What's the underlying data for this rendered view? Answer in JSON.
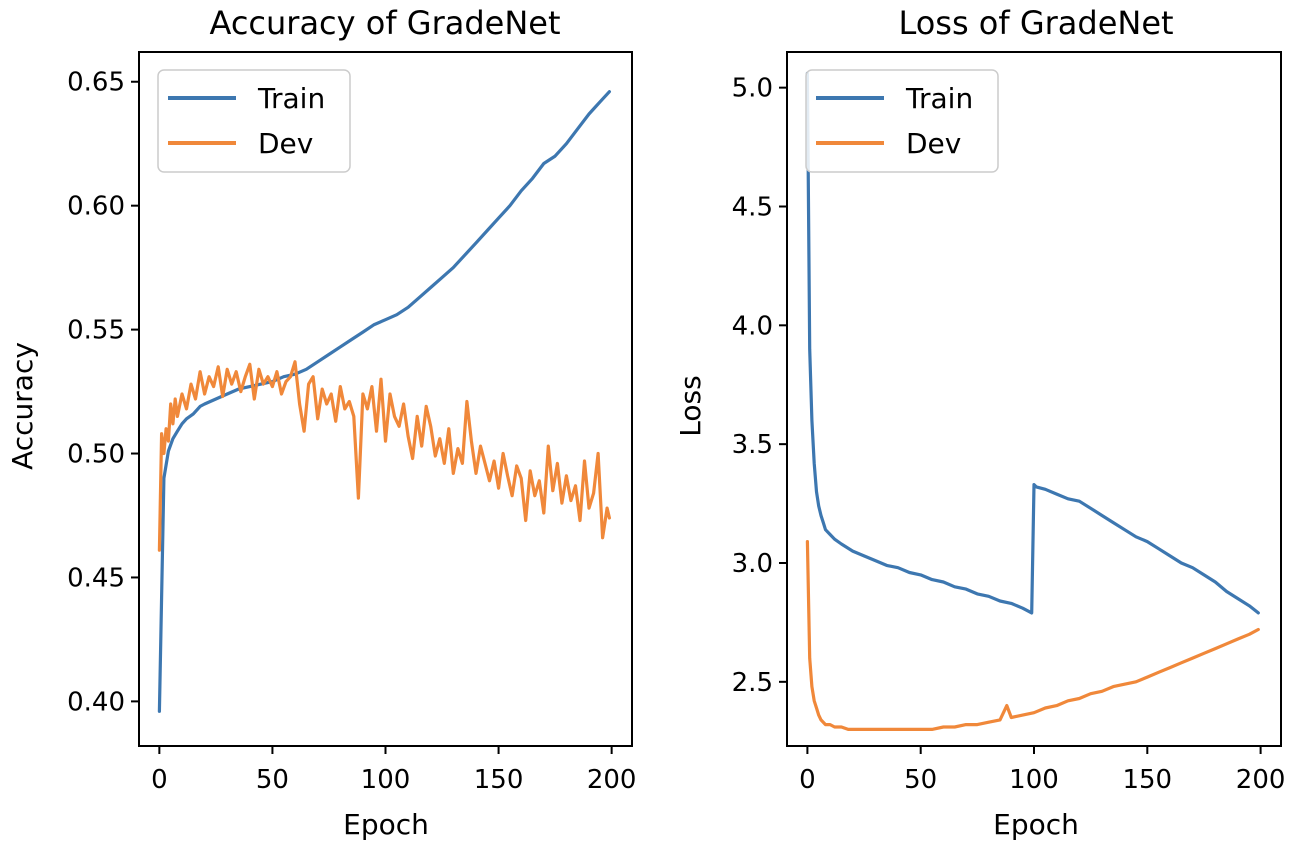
{
  "chart_data": [
    {
      "type": "line",
      "title": "Accuracy of GradeNet",
      "xlabel": "Epoch",
      "ylabel": "Accuracy",
      "xlim": [
        -9,
        209
      ],
      "ylim": [
        0.382,
        0.662
      ],
      "xticks": [
        0,
        50,
        100,
        150,
        200
      ],
      "yticks": [
        0.4,
        0.45,
        0.5,
        0.55,
        0.6,
        0.65
      ],
      "xtick_labels": [
        "0",
        "50",
        "100",
        "150",
        "200"
      ],
      "ytick_labels": [
        "0.40",
        "0.45",
        "0.50",
        "0.55",
        "0.60",
        "0.65"
      ],
      "legend_position": "upper-left",
      "grid": false,
      "series": [
        {
          "name": "Train",
          "color": "#3d77b0",
          "x": [
            0,
            2,
            4,
            6,
            8,
            10,
            12,
            15,
            18,
            20,
            25,
            30,
            35,
            40,
            45,
            50,
            55,
            60,
            65,
            70,
            75,
            80,
            85,
            90,
            95,
            100,
            105,
            110,
            115,
            120,
            125,
            130,
            135,
            140,
            145,
            150,
            155,
            160,
            165,
            170,
            175,
            180,
            185,
            190,
            193,
            195,
            197,
            199
          ],
          "y": [
            0.396,
            0.49,
            0.501,
            0.506,
            0.509,
            0.512,
            0.514,
            0.516,
            0.519,
            0.52,
            0.522,
            0.524,
            0.526,
            0.527,
            0.528,
            0.529,
            0.531,
            0.532,
            0.534,
            0.537,
            0.54,
            0.543,
            0.546,
            0.549,
            0.552,
            0.554,
            0.556,
            0.559,
            0.563,
            0.567,
            0.571,
            0.575,
            0.58,
            0.585,
            0.59,
            0.595,
            0.6,
            0.606,
            0.611,
            0.617,
            0.62,
            0.625,
            0.631,
            0.637,
            0.64,
            0.642,
            0.644,
            0.646
          ]
        },
        {
          "name": "Dev",
          "color": "#f0883a",
          "x": [
            0,
            1,
            2,
            3,
            4,
            5,
            6,
            7,
            8,
            10,
            12,
            14,
            16,
            18,
            20,
            22,
            24,
            26,
            28,
            30,
            32,
            34,
            36,
            38,
            40,
            42,
            44,
            46,
            48,
            50,
            52,
            54,
            56,
            58,
            60,
            62,
            64,
            66,
            68,
            70,
            72,
            74,
            76,
            78,
            80,
            82,
            84,
            86,
            88,
            90,
            92,
            94,
            96,
            98,
            100,
            102,
            104,
            106,
            108,
            110,
            112,
            114,
            116,
            118,
            120,
            122,
            124,
            126,
            128,
            130,
            132,
            134,
            136,
            138,
            140,
            142,
            144,
            146,
            148,
            150,
            152,
            154,
            156,
            158,
            160,
            162,
            164,
            166,
            168,
            170,
            172,
            174,
            176,
            178,
            180,
            182,
            184,
            186,
            188,
            190,
            192,
            194,
            196,
            198,
            199
          ],
          "y": [
            0.461,
            0.508,
            0.5,
            0.51,
            0.505,
            0.52,
            0.512,
            0.522,
            0.515,
            0.524,
            0.518,
            0.528,
            0.522,
            0.533,
            0.524,
            0.531,
            0.527,
            0.535,
            0.523,
            0.534,
            0.528,
            0.533,
            0.525,
            0.531,
            0.536,
            0.522,
            0.534,
            0.528,
            0.531,
            0.527,
            0.533,
            0.524,
            0.529,
            0.531,
            0.537,
            0.52,
            0.509,
            0.528,
            0.531,
            0.514,
            0.526,
            0.52,
            0.524,
            0.513,
            0.527,
            0.518,
            0.521,
            0.515,
            0.482,
            0.524,
            0.518,
            0.527,
            0.509,
            0.53,
            0.505,
            0.524,
            0.515,
            0.511,
            0.52,
            0.507,
            0.498,
            0.515,
            0.503,
            0.519,
            0.511,
            0.499,
            0.506,
            0.496,
            0.51,
            0.492,
            0.502,
            0.496,
            0.521,
            0.505,
            0.492,
            0.503,
            0.496,
            0.489,
            0.497,
            0.486,
            0.5,
            0.491,
            0.483,
            0.495,
            0.49,
            0.473,
            0.493,
            0.483,
            0.489,
            0.476,
            0.503,
            0.485,
            0.496,
            0.48,
            0.491,
            0.481,
            0.487,
            0.473,
            0.497,
            0.478,
            0.484,
            0.5,
            0.466,
            0.478,
            0.474
          ]
        }
      ]
    },
    {
      "type": "line",
      "title": "Loss of GradeNet",
      "xlabel": "Epoch",
      "ylabel": "Loss",
      "xlim": [
        -9,
        209
      ],
      "ylim": [
        2.23,
        5.15
      ],
      "xticks": [
        0,
        50,
        100,
        150,
        200
      ],
      "yticks": [
        2.5,
        3.0,
        3.5,
        4.0,
        4.5,
        5.0
      ],
      "xtick_labels": [
        "0",
        "50",
        "100",
        "150",
        "200"
      ],
      "ytick_labels": [
        "2.5",
        "3.0",
        "3.5",
        "4.0",
        "4.5",
        "5.0"
      ],
      "legend_position": "upper-left",
      "grid": false,
      "series": [
        {
          "name": "Train",
          "color": "#3d77b0",
          "x": [
            0,
            1,
            2,
            3,
            4,
            5,
            6,
            7,
            8,
            10,
            12,
            15,
            20,
            25,
            30,
            35,
            40,
            45,
            50,
            55,
            60,
            65,
            70,
            75,
            80,
            85,
            90,
            95,
            99,
            100,
            101,
            105,
            110,
            115,
            120,
            125,
            130,
            135,
            140,
            145,
            150,
            155,
            160,
            165,
            170,
            175,
            180,
            185,
            190,
            195,
            199
          ],
          "y": [
            5.06,
            3.9,
            3.6,
            3.42,
            3.3,
            3.24,
            3.2,
            3.17,
            3.14,
            3.12,
            3.1,
            3.08,
            3.05,
            3.03,
            3.01,
            2.99,
            2.98,
            2.96,
            2.95,
            2.93,
            2.92,
            2.9,
            2.89,
            2.87,
            2.86,
            2.84,
            2.83,
            2.81,
            2.79,
            3.33,
            3.32,
            3.31,
            3.29,
            3.27,
            3.26,
            3.23,
            3.2,
            3.17,
            3.14,
            3.11,
            3.09,
            3.06,
            3.03,
            3,
            2.98,
            2.95,
            2.92,
            2.88,
            2.85,
            2.82,
            2.79
          ]
        },
        {
          "name": "Dev",
          "color": "#f0883a",
          "x": [
            0,
            1,
            2,
            3,
            4,
            5,
            6,
            8,
            10,
            12,
            15,
            18,
            20,
            25,
            30,
            35,
            40,
            45,
            50,
            55,
            60,
            65,
            70,
            75,
            80,
            85,
            88,
            90,
            95,
            100,
            105,
            110,
            115,
            120,
            125,
            130,
            135,
            140,
            145,
            150,
            155,
            160,
            165,
            170,
            175,
            180,
            185,
            190,
            195,
            199
          ],
          "y": [
            3.09,
            2.6,
            2.48,
            2.42,
            2.39,
            2.36,
            2.34,
            2.32,
            2.32,
            2.31,
            2.31,
            2.3,
            2.3,
            2.3,
            2.3,
            2.3,
            2.3,
            2.3,
            2.3,
            2.3,
            2.31,
            2.31,
            2.32,
            2.32,
            2.33,
            2.34,
            2.4,
            2.35,
            2.36,
            2.37,
            2.39,
            2.4,
            2.42,
            2.43,
            2.45,
            2.46,
            2.48,
            2.49,
            2.5,
            2.52,
            2.54,
            2.56,
            2.58,
            2.6,
            2.62,
            2.64,
            2.66,
            2.68,
            2.7,
            2.72
          ]
        }
      ]
    }
  ]
}
